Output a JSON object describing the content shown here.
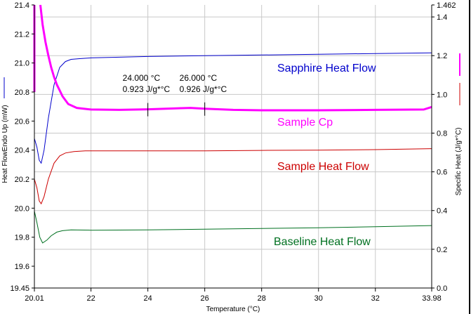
{
  "chart_data": {
    "type": "line",
    "xlabel": "Temperature (°C)",
    "ylabel_left": "Heat FlowEndo Up (mW)",
    "ylabel_right": "Specific Heat (J/g*°C)",
    "xlim": [
      20.01,
      33.98
    ],
    "ylim_left": [
      19.45,
      21.4
    ],
    "ylim_right": [
      0.0,
      1.462
    ],
    "x_ticks": [
      "20.01",
      "22",
      "24",
      "26",
      "28",
      "30",
      "32",
      "33.98"
    ],
    "x_tick_values": [
      20.01,
      22,
      24,
      26,
      28,
      30,
      32,
      33.98
    ],
    "y_left_ticks": [
      "19.45",
      "19.6",
      "19.8",
      "20.0",
      "20.2",
      "20.4",
      "20.6",
      "20.8",
      "21.0",
      "21.2",
      "21.4"
    ],
    "y_left_tick_values": [
      19.45,
      19.6,
      19.8,
      20.0,
      20.2,
      20.4,
      20.6,
      20.8,
      21.0,
      21.2,
      21.4
    ],
    "y_right_ticks": [
      "0.0",
      "0.2",
      "0.4",
      "0.6",
      "0.8",
      "1.0",
      "1.2",
      "1.4",
      "1.462"
    ],
    "y_right_tick_values": [
      0,
      0.2,
      0.4,
      0.6,
      0.8,
      1.0,
      1.2,
      1.4,
      1.462
    ],
    "grid": true,
    "series": [
      {
        "name": "Sapphire Heat Flow",
        "axis": "left",
        "color": "#0000cc",
        "width": 1,
        "x": [
          20.01,
          20.1,
          20.18,
          20.25,
          20.35,
          20.5,
          20.7,
          20.9,
          21.1,
          21.3,
          21.6,
          22,
          24,
          26,
          28,
          30,
          32,
          33.98
        ],
        "y": [
          20.48,
          20.42,
          20.33,
          20.31,
          20.4,
          20.62,
          20.85,
          20.97,
          21.01,
          21.025,
          21.03,
          21.035,
          21.045,
          21.05,
          21.055,
          21.06,
          21.065,
          21.07
        ]
      },
      {
        "name": "Sample Cp",
        "axis": "right",
        "color": "#ff00ff",
        "width": 3,
        "x": [
          20.22,
          20.3,
          20.4,
          20.5,
          20.6,
          20.7,
          20.8,
          20.9,
          21.0,
          21.2,
          21.5,
          22,
          23,
          24,
          25,
          25.5,
          26,
          27,
          28,
          30,
          32,
          33.7,
          33.98
        ],
        "y": [
          1.462,
          1.36,
          1.27,
          1.2,
          1.14,
          1.09,
          1.05,
          1.02,
          0.99,
          0.95,
          0.93,
          0.922,
          0.92,
          0.923,
          0.928,
          0.93,
          0.926,
          0.92,
          0.918,
          0.918,
          0.92,
          0.922,
          0.935
        ]
      },
      {
        "name": "Sample Heat Flow",
        "axis": "left",
        "color": "#cc0000",
        "width": 1,
        "x": [
          20.01,
          20.1,
          20.18,
          20.25,
          20.35,
          20.5,
          20.7,
          20.9,
          21.1,
          21.4,
          21.8,
          22,
          24,
          26,
          28,
          30,
          32,
          33.98
        ],
        "y": [
          20.2,
          20.14,
          20.05,
          20.03,
          20.08,
          20.2,
          20.31,
          20.36,
          20.38,
          20.39,
          20.395,
          20.395,
          20.395,
          20.395,
          20.398,
          20.4,
          20.403,
          20.41
        ]
      },
      {
        "name": "Baseline Heat Flow",
        "axis": "left",
        "color": "#007020",
        "width": 1,
        "x": [
          20.01,
          20.1,
          20.2,
          20.3,
          20.45,
          20.6,
          20.8,
          21.0,
          21.3,
          22,
          24,
          26,
          28,
          30,
          32,
          33.98
        ],
        "y": [
          19.98,
          19.9,
          19.8,
          19.76,
          19.78,
          19.81,
          19.835,
          19.845,
          19.85,
          19.848,
          19.85,
          19.855,
          19.86,
          19.865,
          19.872,
          19.88
        ]
      }
    ],
    "annotations": [
      {
        "x": 24.0,
        "y": 0.923,
        "line1": "24.000 °C",
        "line2": "0.923 J/g*°C"
      },
      {
        "x": 26.0,
        "y": 0.926,
        "line1": "26.000 °C",
        "line2": "0.926 J/g*°C"
      }
    ]
  }
}
